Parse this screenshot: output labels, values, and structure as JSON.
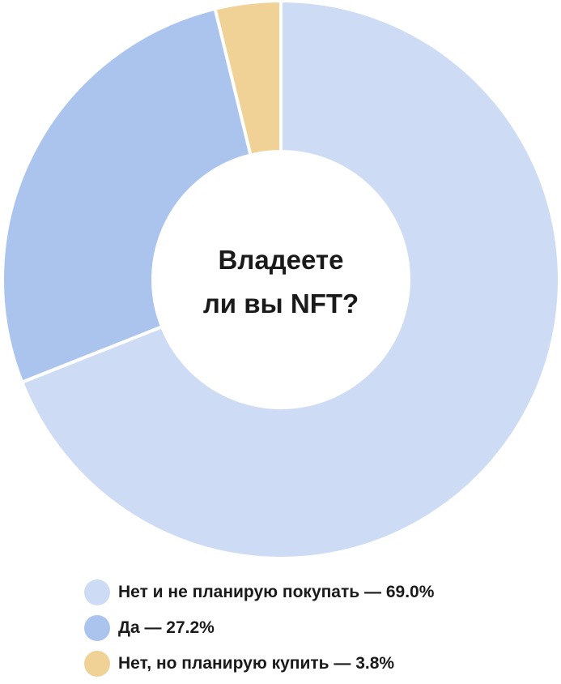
{
  "chart_data": {
    "type": "pie",
    "donut": true,
    "title_lines": [
      "Владеете",
      "ли вы NFT?"
    ],
    "unit": "%",
    "slices": [
      {
        "label": "Нет и не планирую покупать — 69.0%",
        "value": 69.0,
        "color": "#cddcf4"
      },
      {
        "label": "Да — 27.2%",
        "value": 27.2,
        "color": "#abc4ee"
      },
      {
        "label": "Нет, но планирую купить — 3.8%",
        "value": 3.8,
        "color": "#f0d196"
      }
    ],
    "legend_position": "bottom-left"
  }
}
